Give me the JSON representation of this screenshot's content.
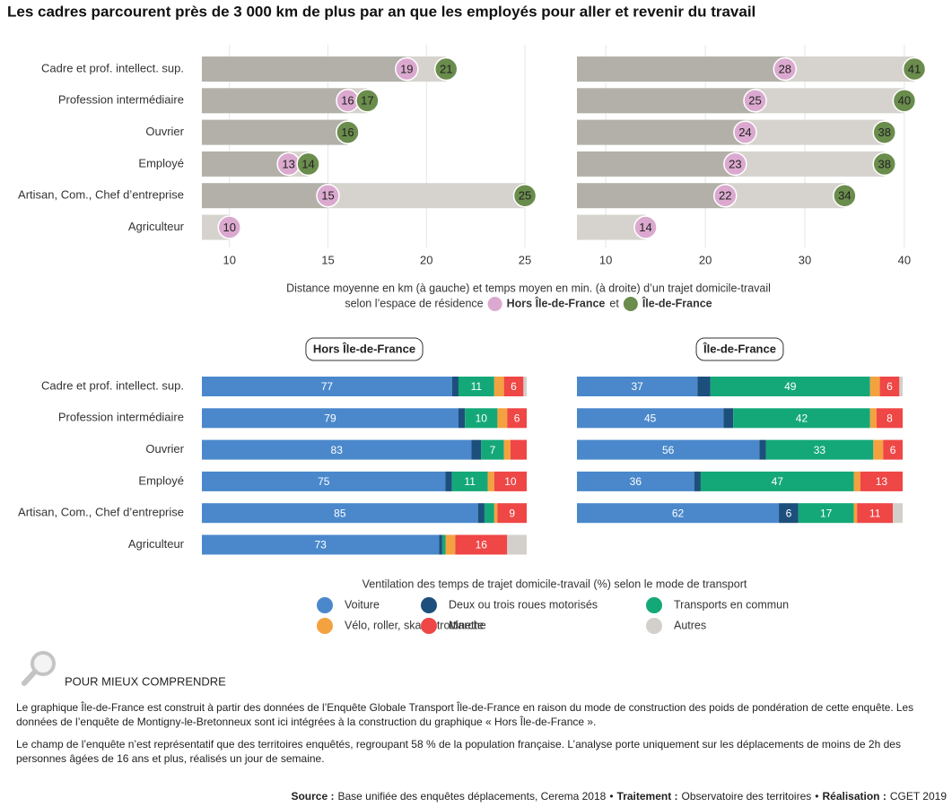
{
  "title": "Les cadres parcourent près de 3 000 km de plus par an que les employés pour aller et revenir du travail",
  "top_caption": {
    "line1": "Distance moyenne en km (à gauche) et temps moyen en min. (à droite) d’un trajet domicile-travail",
    "line2": "selon l’espace de résidence",
    "conjunction": "et"
  },
  "chart_data": [
    {
      "type": "dumbbell",
      "categories": [
        "Cadre et prof. intellect. sup.",
        "Profession intermédiaire",
        "Ouvrier",
        "Employé",
        "Artisan, Com., Chef d’entreprise",
        "Agriculteur"
      ],
      "series": [
        {
          "name": "Hors Île-de-France",
          "color": "#dba9cf",
          "values": [
            19,
            16,
            16,
            13,
            15,
            10
          ]
        },
        {
          "name": "Île-de-France",
          "color": "#6a8c4c",
          "values": [
            21,
            17,
            16,
            14,
            25,
            null
          ]
        }
      ],
      "xlim": [
        8.6,
        25.5
      ],
      "xticks": [
        10,
        15,
        20,
        25
      ],
      "grid": true
    },
    {
      "type": "dumbbell",
      "series": [
        {
          "color": "#dba9cf",
          "values": [
            28,
            25,
            24,
            23,
            22,
            14
          ]
        },
        {
          "color": "#6a8c4c",
          "values": [
            41,
            40,
            38,
            38,
            34,
            null
          ]
        }
      ],
      "xlim": [
        7.1,
        41
      ],
      "xticks": [
        10,
        20,
        30,
        40
      ],
      "grid": true
    },
    {
      "type": "stacked-bar",
      "title": "Hors Île-de-France",
      "xlabel": "Ventilation des temps de trajet domicile-travail (%) selon le mode de transport",
      "categories": [
        "Cadre et prof. intellect. sup.",
        "Profession intermédiaire",
        "Ouvrier",
        "Employé",
        "Artisan, Com., Chef d’entreprise",
        "Agriculteur"
      ],
      "xlim": [
        0,
        100
      ],
      "series": [
        {
          "name": "Voiture",
          "color": "#4a88cb",
          "values": [
            77,
            79,
            83,
            75,
            85,
            73
          ]
        },
        {
          "name": "Deux ou trois roues motorisés",
          "color": "#1d4f7c",
          "values": [
            2,
            2,
            3,
            2,
            2,
            1
          ]
        },
        {
          "name": "Transports en commun",
          "color": "#14a878",
          "values": [
            11,
            10,
            7,
            11,
            3,
            1
          ]
        },
        {
          "name": "Vélo, roller, skate, trottinette",
          "color": "#f4a23f",
          "values": [
            3,
            3,
            2,
            2,
            1,
            3
          ]
        },
        {
          "name": "Marche",
          "color": "#ef4646",
          "values": [
            6,
            6,
            5,
            10,
            9,
            16
          ]
        },
        {
          "name": "Autres",
          "color": "#d3d0cb",
          "values": [
            1,
            0,
            0,
            0,
            0,
            6
          ],
          "show_labels": false
        }
      ]
    },
    {
      "type": "stacked-bar",
      "title": "Île-de-France",
      "xlim": [
        0,
        100
      ],
      "series": [
        {
          "color": "#4a88cb",
          "values": [
            37,
            45,
            56,
            36,
            62,
            null
          ]
        },
        {
          "color": "#1d4f7c",
          "values": [
            4,
            3,
            2,
            2,
            6,
            null
          ]
        },
        {
          "color": "#14a878",
          "values": [
            49,
            42,
            33,
            47,
            17,
            null
          ]
        },
        {
          "color": "#f4a23f",
          "values": [
            3,
            2,
            3,
            2,
            1,
            null
          ]
        },
        {
          "color": "#ef4646",
          "values": [
            6,
            8,
            6,
            13,
            11,
            null
          ]
        },
        {
          "color": "#d3d0cb",
          "values": [
            1,
            0,
            0,
            0,
            3,
            null
          ],
          "show_labels": false
        }
      ]
    }
  ],
  "notes": {
    "heading": "POUR MIEUX COMPRENDRE",
    "paragraphs": [
      [
        "Le graphique Île-de-France est construit à partir des données de l’Enquête Globale Transport Île-de-France en raison du mode de construction des poids de pondération de cette enquête. Les",
        "données de l’enquête de Montigny-le-Bretonneux sont ici intégrées à la construction du graphique « Hors Île-de-France »."
      ],
      [
        "Le champ de l’enquête n’est représentatif que des territoires enquêtés, regroupant 58 % de la population française. L’analyse porte uniquement sur les déplacements de moins de 2h des",
        "personnes âgées de 16 ans et plus, réalisés un jour de semaine."
      ]
    ]
  },
  "source": [
    {
      "label": "Source :",
      "text": "Base unifiée des enquêtes déplacements, Cerema 2018"
    },
    {
      "label": "Traitement :",
      "text": "Observatoire des territoires"
    },
    {
      "label": "Réalisation :",
      "text": "CGET 2019"
    }
  ],
  "source_separator": "•"
}
